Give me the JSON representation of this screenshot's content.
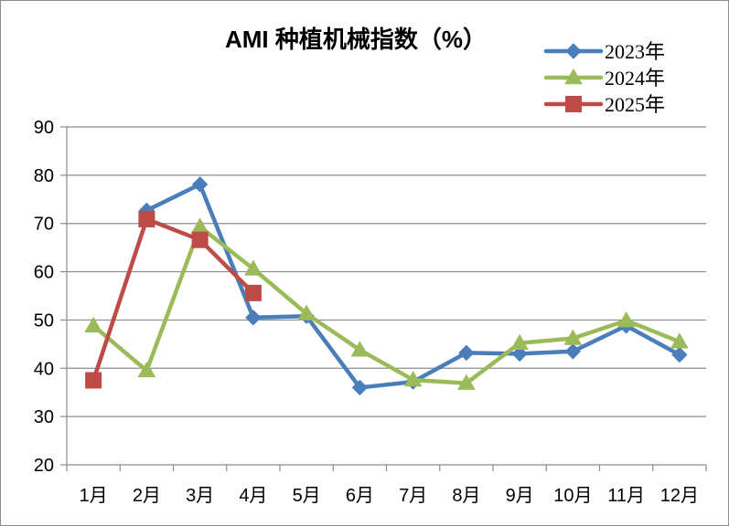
{
  "chart_data": {
    "type": "line",
    "title": "AMI 种植机械指数（%）",
    "xlabel": "",
    "ylabel": "",
    "categories": [
      "1月",
      "2月",
      "3月",
      "4月",
      "5月",
      "6月",
      "7月",
      "8月",
      "9月",
      "10月",
      "11月",
      "12月"
    ],
    "ylim": [
      20,
      90
    ],
    "yticks": [
      20,
      30,
      40,
      50,
      60,
      70,
      80,
      90
    ],
    "grid": true,
    "legend_position": "top-right",
    "series": [
      {
        "name": "2023年",
        "color": "#4a7ebb",
        "marker": "diamond",
        "values": [
          null,
          72.7,
          78.1,
          50.5,
          50.8,
          36.0,
          37.2,
          43.2,
          43.0,
          43.5,
          48.8,
          42.8
        ]
      },
      {
        "name": "2024年",
        "color": "#9bbb59",
        "marker": "triangle",
        "values": [
          48.8,
          39.5,
          69.3,
          60.6,
          51.3,
          43.8,
          37.6,
          36.9,
          45.2,
          46.2,
          49.9,
          45.5
        ]
      },
      {
        "name": "2025年",
        "color": "#be4b48",
        "marker": "square",
        "values": [
          37.5,
          70.9,
          66.6,
          55.6,
          null,
          null,
          null,
          null,
          null,
          null,
          null,
          null
        ]
      }
    ]
  }
}
